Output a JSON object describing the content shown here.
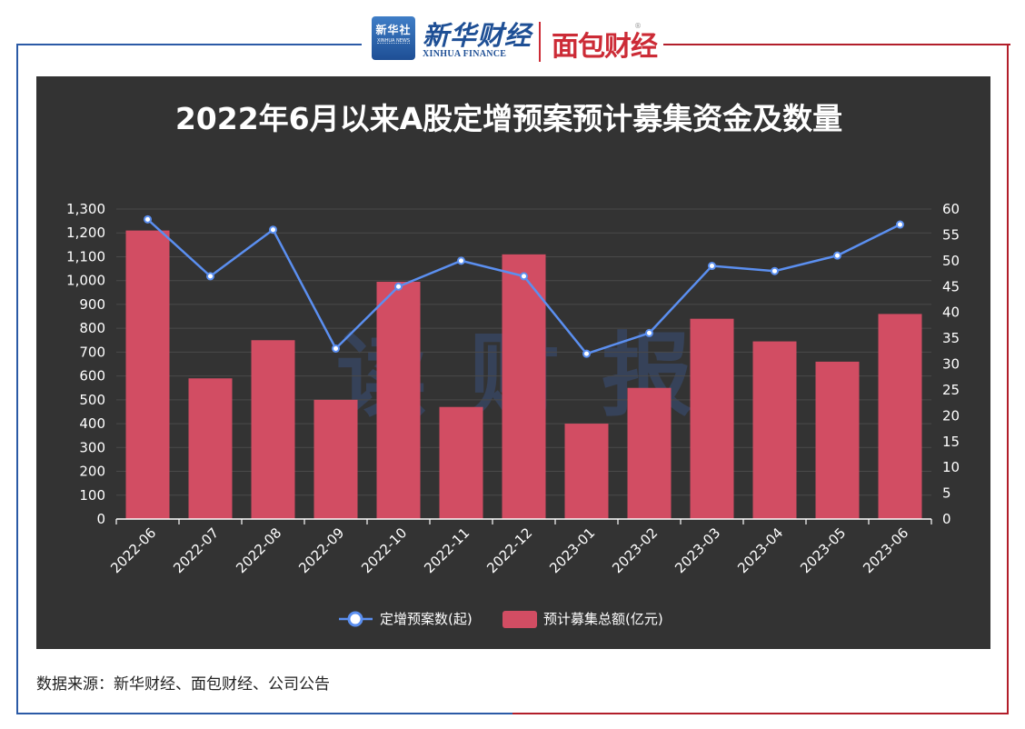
{
  "header": {
    "xinhua_badge_top": "新华社",
    "xinhua_badge_sub": "XINHUA NEWS",
    "xinhua_finance_cn": "新华财经",
    "xinhua_finance_en": "XINHUA FINANCE",
    "mianbao_logo": "面包财经",
    "registered_mark": "®"
  },
  "watermark": "读财报",
  "source": "数据来源：新华财经、面包财经、公司公告",
  "colors": {
    "panel_bg": "#333333",
    "bar": "#d24d63",
    "line": "#5b8ff0",
    "frame_left": "#2b5aa6",
    "frame_right": "#b21e2a"
  },
  "chart_data": {
    "type": "bar",
    "title": "2022年6月以来A股定增预案预计募集资金及数量",
    "categories": [
      "2022-06",
      "2022-07",
      "2022-08",
      "2022-09",
      "2022-10",
      "2022-11",
      "2022-12",
      "2023-01",
      "2023-02",
      "2023-03",
      "2023-04",
      "2023-05",
      "2023-06"
    ],
    "series": [
      {
        "name": "预计募集总额(亿元)",
        "kind": "bar",
        "axis": "left",
        "values": [
          1210,
          590,
          750,
          500,
          995,
          470,
          1110,
          400,
          550,
          840,
          745,
          660,
          860
        ]
      },
      {
        "name": "定增预案数(起)",
        "kind": "line",
        "axis": "right",
        "values": [
          58,
          47,
          56,
          33,
          45,
          50,
          47,
          32,
          36,
          49,
          48,
          51,
          57
        ]
      }
    ],
    "y_left": {
      "min": 0,
      "max": 1300,
      "step": 100
    },
    "y_right": {
      "min": 0,
      "max": 60,
      "step": 5
    },
    "grid": true,
    "legend_position": "bottom-center"
  }
}
